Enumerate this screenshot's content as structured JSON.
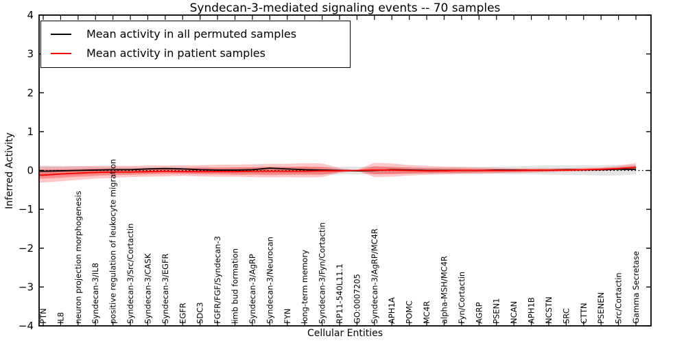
{
  "title": "Syndecan-3-mediated signaling events -- 70 samples",
  "legend": {
    "items": [
      {
        "label": "Mean activity in all permuted samples",
        "color": "#000000"
      },
      {
        "label": "Mean activity in patient samples",
        "color": "#ff0000"
      }
    ]
  },
  "chart_data": {
    "type": "line",
    "title": "Syndecan-3-mediated signaling events -- 70 samples",
    "xlabel": "Cellular Entities",
    "ylabel": "Inferred Activity",
    "ylim": [
      -4,
      4
    ],
    "yticks": [
      -4,
      -3,
      -2,
      -1,
      0,
      1,
      2,
      3,
      4
    ],
    "grid": false,
    "zero_line": true,
    "legend_position": "upper left",
    "categories": [
      "PTN",
      "IL8",
      "neuron projection morphogenesis",
      "Syndecan-3/IL8",
      "positive regulation of leukocyte migration",
      "Syndecan-3/Src/Cortactin",
      "Syndecan-3/CASK",
      "Syndecan-3/EGFR",
      "EGFR",
      "SDC3",
      "FGFR/FGF/Syndecan-3",
      "limb bud formation",
      "Syndecan-3/AgRP",
      "Syndecan-3/Neurocan",
      "FYN",
      "long-term memory",
      "Syndecan-3/Fyn/Cortactin",
      "RP11-540L11.1",
      "GO:0007205",
      "Syndecan-3/AgRP/MC4R",
      "APH1A",
      "POMC",
      "MC4R",
      "alpha-MSH/MC4R",
      "Fyn/Cortactin",
      "AGRP",
      "PSEN1",
      "NCAN",
      "APH1B",
      "NCSTN",
      "SRC",
      "CTTN",
      "PSENEN",
      "Src/Cortactin",
      "Gamma Secretase"
    ],
    "series": [
      {
        "name": "Mean activity in all permuted samples",
        "color": "#000000",
        "values": [
          -0.02,
          -0.01,
          0.0,
          0.01,
          0.02,
          0.02,
          0.04,
          0.05,
          0.04,
          0.02,
          0.01,
          0.01,
          0.02,
          0.06,
          0.04,
          0.02,
          0.01,
          0.0,
          -0.01,
          0.0,
          0.02,
          0.01,
          0.0,
          0.0,
          0.0,
          0.0,
          0.01,
          0.01,
          0.01,
          0.01,
          0.02,
          0.02,
          0.02,
          0.03,
          0.03
        ]
      },
      {
        "name": "Mean activity in patient samples",
        "color": "#ff0000",
        "values": [
          -0.12,
          -0.09,
          -0.07,
          -0.05,
          -0.04,
          -0.04,
          -0.03,
          -0.02,
          -0.03,
          -0.03,
          -0.03,
          -0.03,
          -0.02,
          -0.02,
          -0.02,
          -0.02,
          -0.01,
          -0.01,
          0.0,
          0.01,
          0.01,
          0.0,
          -0.01,
          -0.01,
          0.0,
          0.0,
          0.0,
          0.0,
          0.01,
          0.01,
          0.01,
          0.02,
          0.03,
          0.05,
          0.08
        ]
      }
    ],
    "bands": [
      {
        "name": "permuted-samples-range",
        "color": "#000000",
        "opacity": 0.1,
        "hi": [
          0.13,
          0.12,
          0.11,
          0.1,
          0.09,
          0.09,
          0.09,
          0.1,
          0.09,
          0.09,
          0.08,
          0.08,
          0.09,
          0.1,
          0.09,
          0.09,
          0.09,
          0.1,
          0.1,
          0.1,
          0.09,
          0.09,
          0.08,
          0.08,
          0.09,
          0.09,
          0.1,
          0.11,
          0.12,
          0.13,
          0.13,
          0.14,
          0.14,
          0.15,
          0.14
        ],
        "lo": [
          -0.15,
          -0.13,
          -0.11,
          -0.1,
          -0.09,
          -0.08,
          -0.07,
          -0.06,
          -0.06,
          -0.07,
          -0.07,
          -0.08,
          -0.08,
          -0.08,
          -0.08,
          -0.08,
          -0.09,
          -0.1,
          -0.1,
          -0.09,
          -0.09,
          -0.08,
          -0.08,
          -0.08,
          -0.08,
          -0.09,
          -0.09,
          -0.1,
          -0.1,
          -0.11,
          -0.12,
          -0.12,
          -0.13,
          -0.13,
          -0.1
        ]
      },
      {
        "name": "patient-samples-outer-band",
        "color": "#ff0000",
        "opacity": 0.22,
        "hi": [
          0.1,
          0.1,
          0.11,
          0.12,
          0.12,
          0.12,
          0.13,
          0.13,
          0.13,
          0.14,
          0.15,
          0.15,
          0.16,
          0.17,
          0.17,
          0.19,
          0.18,
          0.06,
          0.01,
          0.2,
          0.18,
          0.14,
          0.12,
          0.1,
          0.09,
          0.08,
          0.07,
          0.06,
          0.06,
          0.06,
          0.06,
          0.07,
          0.08,
          0.12,
          0.19
        ],
        "lo": [
          -0.31,
          -0.28,
          -0.24,
          -0.21,
          -0.19,
          -0.17,
          -0.16,
          -0.15,
          -0.14,
          -0.15,
          -0.16,
          -0.16,
          -0.17,
          -0.18,
          -0.17,
          -0.18,
          -0.17,
          -0.06,
          -0.01,
          -0.17,
          -0.16,
          -0.13,
          -0.11,
          -0.1,
          -0.09,
          -0.08,
          -0.07,
          -0.06,
          -0.05,
          -0.04,
          -0.03,
          -0.02,
          -0.01,
          0.01,
          0.01
        ]
      },
      {
        "name": "patient-samples-inner-band",
        "color": "#ff0000",
        "opacity": 0.28,
        "hi": [
          0.02,
          0.03,
          0.04,
          0.05,
          0.05,
          0.05,
          0.06,
          0.06,
          0.06,
          0.07,
          0.07,
          0.08,
          0.08,
          0.09,
          0.09,
          0.1,
          0.09,
          0.03,
          0.0,
          0.11,
          0.09,
          0.07,
          0.06,
          0.05,
          0.05,
          0.04,
          0.04,
          0.03,
          0.03,
          0.03,
          0.03,
          0.04,
          0.06,
          0.08,
          0.12
        ],
        "lo": [
          -0.21,
          -0.19,
          -0.16,
          -0.14,
          -0.12,
          -0.11,
          -0.1,
          -0.09,
          -0.09,
          -0.1,
          -0.1,
          -0.11,
          -0.11,
          -0.12,
          -0.11,
          -0.11,
          -0.11,
          -0.04,
          0.0,
          -0.1,
          -0.09,
          -0.08,
          -0.07,
          -0.06,
          -0.06,
          -0.05,
          -0.05,
          -0.04,
          -0.04,
          -0.03,
          -0.01,
          -0.01,
          0.0,
          0.02,
          0.03
        ]
      }
    ]
  }
}
